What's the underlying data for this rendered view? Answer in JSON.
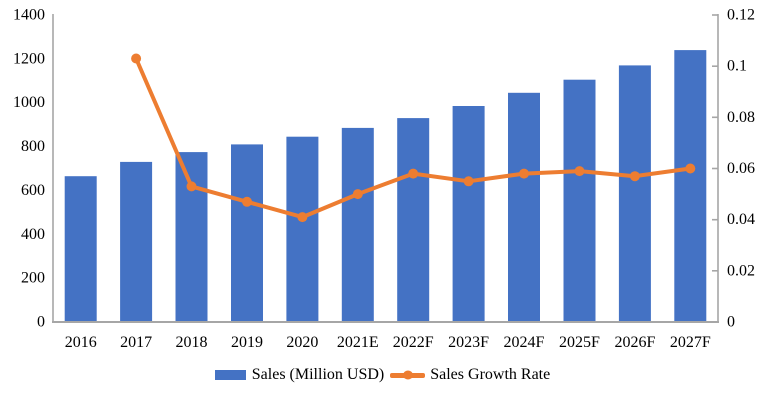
{
  "page": {
    "background": "#FFFFFF"
  },
  "chart_data": {
    "type": "combo",
    "title": "",
    "categories": [
      "2016",
      "2017",
      "2018",
      "2019",
      "2020",
      "2021E",
      "2022F",
      "2023F",
      "2024F",
      "2025F",
      "2026F",
      "2027F"
    ],
    "series": [
      {
        "name": "Sales (Million USD)",
        "type": "bar",
        "axis": "left",
        "color": "#4472C4",
        "values": [
          665,
          730,
          775,
          810,
          845,
          885,
          930,
          985,
          1045,
          1105,
          1170,
          1240
        ]
      },
      {
        "name": "Sales Growth Rate",
        "type": "line",
        "axis": "right",
        "color": "#ED7D31",
        "values": [
          null,
          0.103,
          0.053,
          0.047,
          0.041,
          0.05,
          0.058,
          0.055,
          0.058,
          0.059,
          0.057,
          0.06
        ]
      }
    ],
    "left_axis": {
      "min": 0,
      "max": 1400,
      "step": 200,
      "tick_labels": [
        "0",
        "200",
        "400",
        "600",
        "800",
        "1000",
        "1200",
        "1400"
      ]
    },
    "right_axis": {
      "min": 0,
      "max": 0.12,
      "step": 0.02,
      "tick_labels": [
        "0",
        "0.02",
        "0.04",
        "0.06",
        "0.08",
        "0.1",
        "0.12"
      ]
    },
    "grid": false,
    "legend_position": "bottom",
    "axis_color": "#A6A6A6",
    "text_color": "#000000",
    "background": "#FFFFFF"
  },
  "legend": {
    "items": [
      {
        "label": "Sales (Million USD)",
        "color": "#4472C4",
        "marker": "bar"
      },
      {
        "label": "Sales Growth Rate",
        "color": "#ED7D31",
        "marker": "line"
      }
    ]
  }
}
